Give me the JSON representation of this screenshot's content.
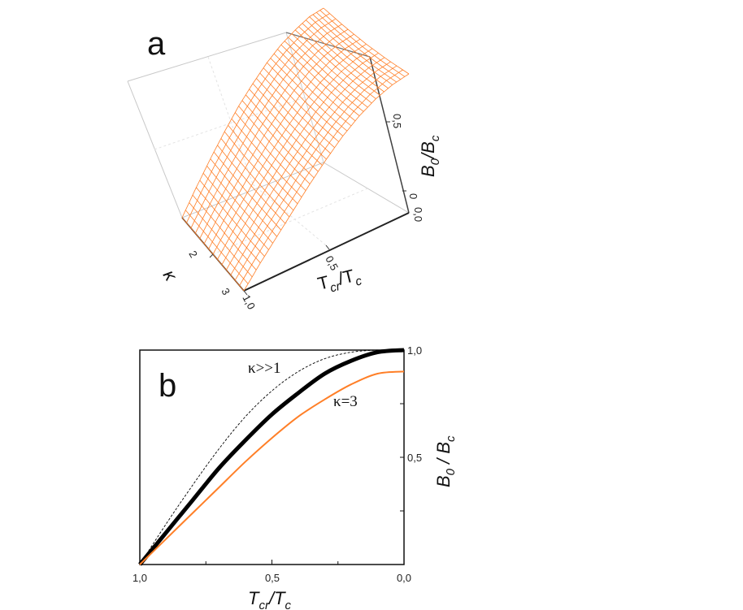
{
  "chart_data": [
    {
      "panel_label": "a",
      "type": "surface3d",
      "axes": {
        "x": {
          "label_main": "T",
          "label_sub": "cr",
          "label_sep": "/T",
          "label_sub2": "c",
          "ticks": [
            "0,5",
            "1,0"
          ]
        },
        "y": {
          "label": "κ",
          "ticks": [
            "2",
            "3"
          ]
        },
        "z": {
          "label_main": "B",
          "label_sub": "0",
          "label_sep": "/B",
          "label_sub2": "c",
          "ticks": [
            "0,5",
            "0",
            "0,0"
          ]
        }
      },
      "surface": {
        "color": "#ff7f27",
        "tcr_over_tc": [
          1.0,
          0.9,
          0.8,
          0.7,
          0.6,
          0.5,
          0.4,
          0.3,
          0.2,
          0.1,
          0.0
        ],
        "kappa": [
          1.0,
          1.5,
          2.0,
          2.5,
          3.0
        ],
        "b0_over_bc": [
          [
            0.0,
            0.16,
            0.31,
            0.45,
            0.58,
            0.69,
            0.79,
            0.87,
            0.93,
            0.98,
            1.0
          ],
          [
            0.0,
            0.15,
            0.29,
            0.42,
            0.55,
            0.66,
            0.76,
            0.84,
            0.9,
            0.94,
            0.96
          ],
          [
            0.0,
            0.14,
            0.27,
            0.4,
            0.52,
            0.63,
            0.73,
            0.81,
            0.87,
            0.91,
            0.93
          ],
          [
            0.0,
            0.13,
            0.26,
            0.38,
            0.5,
            0.61,
            0.71,
            0.79,
            0.85,
            0.89,
            0.91
          ],
          [
            0.0,
            0.13,
            0.25,
            0.37,
            0.49,
            0.6,
            0.7,
            0.78,
            0.84,
            0.88,
            0.9
          ]
        ]
      }
    },
    {
      "panel_label": "b",
      "type": "line",
      "xlabel_main": "T",
      "xlabel_sub": "cr",
      "xlabel_sep": "/T",
      "xlabel_sub2": "c",
      "ylabel_main": "B",
      "ylabel_sub": "0",
      "ylabel_sep": " / B",
      "ylabel_sub2": "c",
      "xlim": [
        1.0,
        0.0
      ],
      "ylim": [
        0.0,
        1.0
      ],
      "xticks": [
        "1,0",
        "0,5",
        "0,0"
      ],
      "yticks": [
        "0,5",
        "1,0"
      ],
      "x": [
        1.0,
        0.9,
        0.8,
        0.7,
        0.6,
        0.5,
        0.4,
        0.3,
        0.2,
        0.1,
        0.0
      ],
      "series": [
        {
          "style": "dashed-thin",
          "color": "#000000",
          "values": [
            0.0,
            0.19,
            0.37,
            0.54,
            0.69,
            0.81,
            0.9,
            0.96,
            0.99,
            1.0,
            1.0
          ]
        },
        {
          "style": "thick",
          "color": "#000000",
          "values": [
            0.0,
            0.15,
            0.3,
            0.45,
            0.58,
            0.7,
            0.8,
            0.89,
            0.95,
            0.99,
            1.0
          ]
        },
        {
          "style": "solid",
          "color": "#ff7f27",
          "values": [
            0.0,
            0.12,
            0.24,
            0.36,
            0.48,
            0.59,
            0.69,
            0.77,
            0.84,
            0.89,
            0.9
          ]
        }
      ],
      "annotations": [
        "κ>>1",
        "κ=3"
      ]
    }
  ]
}
